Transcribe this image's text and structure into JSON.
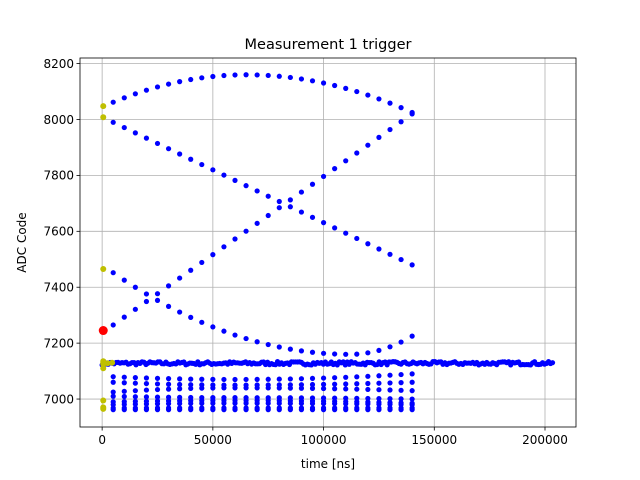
{
  "chart_data": {
    "type": "scatter",
    "title": "Measurement 1 trigger",
    "xlabel": "time [ns]",
    "ylabel": "ADC Code",
    "xlim": [
      -10000,
      214000
    ],
    "ylim": [
      6900,
      8220
    ],
    "xticks": [
      0,
      50000,
      100000,
      150000,
      200000
    ],
    "yticks": [
      7000,
      7200,
      7400,
      7600,
      7800,
      8000,
      8200
    ],
    "grid": true,
    "colors": {
      "series": "#0000ff",
      "pretrigger": "#bfbf00",
      "trigger": "#ff0000"
    },
    "series": [
      {
        "color": "blue",
        "curves": [
          {
            "kind": "arc",
            "x_start": 5000,
            "x_end": 140000,
            "y_start": 8062,
            "y_peak": 8160,
            "x_peak": 65000,
            "y_end": 8025
          },
          {
            "kind": "linear",
            "x_start": 5000,
            "x_end": 140000,
            "y_start": 7990,
            "y_end": 7480
          },
          {
            "kind": "linear",
            "x_start": 5000,
            "x_end": 140000,
            "y_start": 7265,
            "y_end": 8020
          },
          {
            "kind": "arc",
            "x_start": 5000,
            "x_end": 140000,
            "y_start": 7452,
            "y_peak": 7160,
            "x_peak": 112000,
            "y_end": 7225
          },
          {
            "kind": "arc",
            "x_start": 5000,
            "x_end": 140000,
            "y_start": 7080,
            "y_peak": 7070,
            "x_peak": 60000,
            "y_end": 7090
          },
          {
            "kind": "arc",
            "x_start": 5000,
            "x_end": 140000,
            "y_start": 7060,
            "y_peak": 7050,
            "x_peak": 60000,
            "y_end": 7060
          },
          {
            "kind": "arc",
            "x_start": 5000,
            "x_end": 140000,
            "y_start": 7025,
            "y_peak": 7040,
            "x_peak": 60000,
            "y_end": 7030
          },
          {
            "kind": "arc",
            "x_start": 5000,
            "x_end": 140000,
            "y_start": 7010,
            "y_peak": 7005,
            "x_peak": 60000,
            "y_end": 7000
          },
          {
            "kind": "arc",
            "x_start": 5000,
            "x_end": 140000,
            "y_start": 6990,
            "y_peak": 6995,
            "x_peak": 60000,
            "y_end": 6985
          },
          {
            "kind": "arc",
            "x_start": 5000,
            "x_end": 140000,
            "y_start": 6980,
            "y_peak": 6985,
            "x_peak": 60000,
            "y_end": 6980
          },
          {
            "kind": "linear",
            "x_start": 5000,
            "x_end": 140000,
            "y_start": 6968,
            "y_end": 6968
          },
          {
            "kind": "linear",
            "x_start": 5000,
            "x_end": 140000,
            "y_start": 6962,
            "y_end": 6962
          },
          {
            "kind": "band",
            "x_start": 0,
            "x_end": 204000,
            "y_center": 7128,
            "y_spread": 12
          }
        ]
      },
      {
        "color": "olive",
        "points": [
          [
            500,
            8048
          ],
          [
            500,
            8008
          ],
          [
            500,
            7465
          ],
          [
            500,
            7110
          ],
          [
            500,
            7125
          ],
          [
            500,
            7130
          ],
          [
            500,
            7135
          ],
          [
            2500,
            7128
          ],
          [
            4500,
            7130
          ],
          [
            500,
            6995
          ],
          [
            500,
            6970
          ],
          [
            500,
            6965
          ]
        ]
      },
      {
        "color": "red",
        "points": [
          [
            500,
            7245
          ]
        ]
      }
    ]
  }
}
